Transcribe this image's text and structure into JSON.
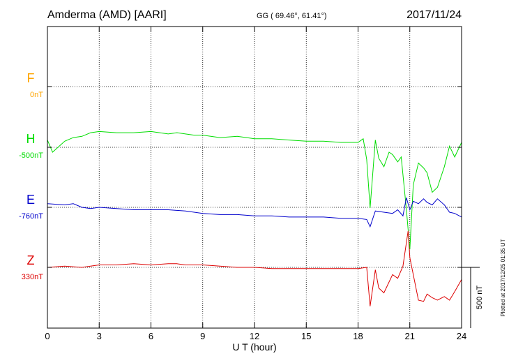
{
  "header": {
    "station": "Amderma (AMD)  [AARI]",
    "coords": "GG ( 69.46°,  61.41°)",
    "date": "2017/11/24"
  },
  "footer_note": "Plotted at 2017/12/25 01:35 UT",
  "scale_bar_label": "500 nT",
  "colors": {
    "F": "#ffa500",
    "H": "#00dd00",
    "E": "#0000cc",
    "Z": "#dd0000",
    "grid": "#000000"
  },
  "chart_data": {
    "type": "line",
    "title": "Amderma (AMD)  [AARI]",
    "xlabel": "U T (hour)",
    "xlim": [
      0,
      24
    ],
    "xticks": [
      0,
      3,
      6,
      9,
      12,
      15,
      18,
      21,
      24
    ],
    "grid": true,
    "series": [
      {
        "name": "F",
        "baseline_label": "0nT",
        "x": [],
        "values": []
      },
      {
        "name": "H",
        "baseline_label": "-500nT",
        "x": [
          0,
          0.3,
          1,
          1.5,
          2,
          2.5,
          3,
          4,
          5,
          6,
          7,
          7.5,
          8,
          8.5,
          9,
          10,
          11,
          12,
          13,
          14,
          15,
          16,
          17,
          18,
          18.3,
          18.5,
          18.7,
          19,
          19.2,
          19.5,
          19.8,
          20,
          20.3,
          20.5,
          20.8,
          21,
          21.2,
          21.5,
          21.8,
          22,
          22.3,
          22.6,
          23,
          23.3,
          23.6,
          24
        ],
        "values": [
          -440,
          -540,
          -450,
          -420,
          -410,
          -380,
          -370,
          -380,
          -380,
          -370,
          -390,
          -380,
          -390,
          -400,
          -400,
          -420,
          -410,
          -430,
          -430,
          -440,
          -450,
          -450,
          -460,
          -460,
          -430,
          -600,
          -1000,
          -440,
          -590,
          -660,
          -540,
          -560,
          -620,
          -580,
          -1010,
          -1340,
          -810,
          -630,
          -670,
          -710,
          -870,
          -830,
          -660,
          -490,
          -580,
          -460
        ]
      },
      {
        "name": "E",
        "baseline_label": "-760nT",
        "x": [
          0,
          1,
          1.5,
          2,
          2.5,
          3,
          4,
          5,
          6,
          7,
          8,
          9,
          10,
          11,
          12,
          13,
          14,
          15,
          16,
          17,
          18,
          18.5,
          18.7,
          19,
          19.5,
          20,
          20.3,
          20.6,
          20.8,
          21,
          21.2,
          21.5,
          21.8,
          22,
          22.3,
          22.6,
          23,
          23.3,
          23.6,
          24
        ],
        "values": [
          -730,
          -740,
          -730,
          -760,
          -770,
          -760,
          -770,
          -780,
          -780,
          -780,
          -790,
          -810,
          -820,
          -820,
          -830,
          -830,
          -840,
          -840,
          -840,
          -850,
          -850,
          -860,
          -920,
          -790,
          -800,
          -810,
          -780,
          -830,
          -680,
          -780,
          -710,
          -730,
          -690,
          -720,
          -740,
          -690,
          -740,
          -800,
          -810,
          -840
        ]
      },
      {
        "name": "Z",
        "baseline_label": "330nT",
        "x": [
          0,
          1,
          2,
          3,
          4,
          5,
          6,
          7,
          7.5,
          8,
          9,
          10,
          11,
          12,
          13,
          14,
          15,
          16,
          17,
          18,
          18.5,
          18.7,
          19,
          19.2,
          19.5,
          20,
          20.3,
          20.6,
          20.9,
          21,
          21.2,
          21.5,
          21.8,
          22,
          22.3,
          22.6,
          23,
          23.3,
          23.6,
          24
        ],
        "values": [
          330,
          340,
          330,
          350,
          350,
          360,
          350,
          360,
          360,
          350,
          350,
          340,
          330,
          330,
          320,
          320,
          320,
          320,
          320,
          320,
          330,
          10,
          310,
          160,
          120,
          270,
          240,
          340,
          630,
          410,
          270,
          60,
          50,
          110,
          80,
          60,
          90,
          60,
          130,
          230
        ]
      }
    ]
  }
}
